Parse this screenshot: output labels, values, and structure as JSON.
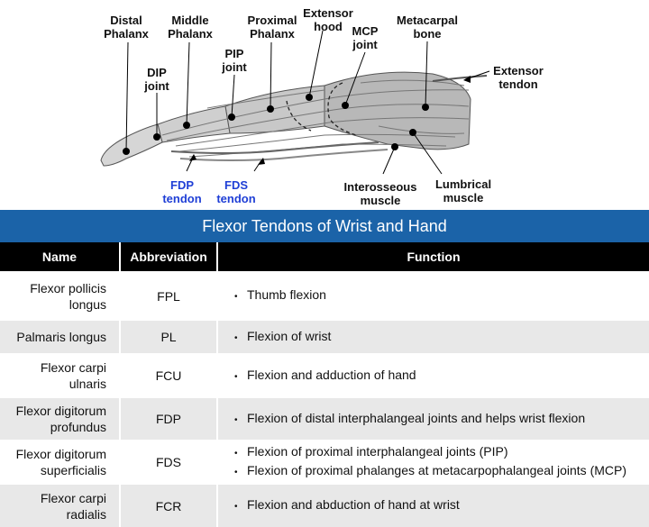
{
  "figure": {
    "labels": {
      "distal_phalanx": "Distal\nPhalanx",
      "middle_phalanx": "Middle\nPhalanx",
      "proximal_phalanx": "Proximal\nPhalanx",
      "extensor_hood": "Extensor\nhood",
      "mcp_joint": "MCP\njoint",
      "metacarpal_bone": "Metacarpal\nbone",
      "dip_joint": "DIP\njoint",
      "pip_joint": "PIP\njoint",
      "extensor_tendon": "Extensor\ntendon",
      "fdp_tendon": "FDP\ntendon",
      "fds_tendon": "FDS\ntendon",
      "interosseous_muscle": "Interosseous\nmuscle",
      "lumbrical_muscle": "Lumbrical\nmuscle"
    },
    "colors": {
      "blue_label": "#1f3fd6"
    }
  },
  "title": "Flexor Tendons of Wrist and Hand",
  "title_bar_color": "#1b63a8",
  "table": {
    "headers": [
      "Name",
      "Abbreviation",
      "Function"
    ],
    "rows": [
      {
        "name": "Flexor pollicis\nlongus",
        "abbr": "FPL",
        "functions": [
          "Thumb flexion"
        ]
      },
      {
        "name": "Palmaris longus",
        "abbr": "PL",
        "functions": [
          "Flexion of wrist"
        ]
      },
      {
        "name": "Flexor carpi\nulnaris",
        "abbr": "FCU",
        "functions": [
          "Flexion and adduction of hand"
        ]
      },
      {
        "name": "Flexor digitorum\nprofundus",
        "abbr": "FDP",
        "functions": [
          "Flexion of distal interphalangeal joints and helps wrist flexion"
        ]
      },
      {
        "name": "Flexor digitorum\nsuperficialis",
        "abbr": "FDS",
        "functions": [
          "Flexion of proximal interphalangeal joints (PIP)",
          "Flexion of proximal phalanges at metacarpophalangeal joints (MCP)"
        ]
      },
      {
        "name": "Flexor carpi\nradialis",
        "abbr": "FCR",
        "functions": [
          "Flexion and abduction of hand at wrist"
        ]
      }
    ]
  }
}
